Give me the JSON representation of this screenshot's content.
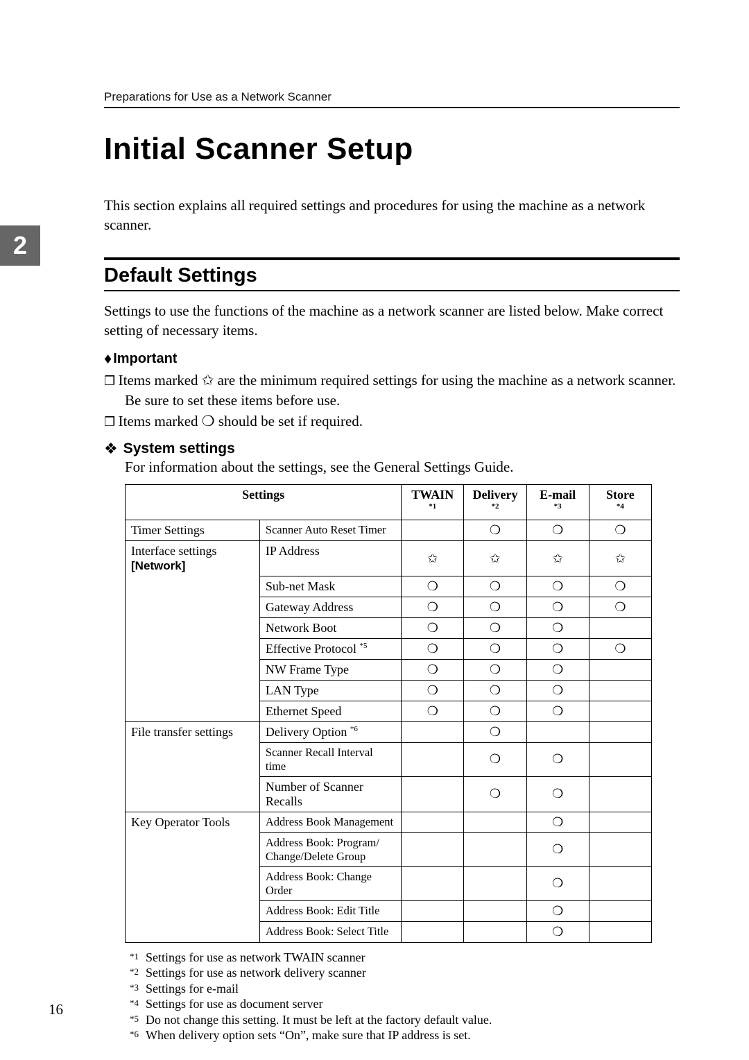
{
  "page_number": "16",
  "chapter_tab": "2",
  "running_head": "Preparations for Use as a Network Scanner",
  "title": "Initial Scanner Setup",
  "intro": "This section explains all required settings and procedures for using the machine as a network scanner.",
  "section_heading": "Default Settings",
  "section_body": "Settings to use the functions of the machine as a network scanner are listed below. Make correct setting of necessary items.",
  "important_label": "Important",
  "important_items": [
    "Items marked ✩ are the minimum required settings for using the machine as a network scanner. Be sure to set these items before use.",
    "Items marked ❍ should be set if required."
  ],
  "system_settings_heading": "System settings",
  "system_settings_sub": "For information about the settings, see the General Settings Guide.",
  "table": {
    "header": {
      "settings": "Settings",
      "cols": [
        {
          "label": "TWAIN",
          "note": "*1"
        },
        {
          "label": "Delivery",
          "note": "*2"
        },
        {
          "label": "E-mail",
          "note": "*3"
        },
        {
          "label": "Store",
          "note": "*4"
        }
      ]
    },
    "groups": [
      {
        "category": "Timer Settings",
        "rows": [
          {
            "setting": "Scanner Auto Reset Timer",
            "small": true,
            "marks": [
              "",
              "❍",
              "❍",
              "❍"
            ]
          }
        ]
      },
      {
        "category": "Interface settings",
        "sub": "[Network]",
        "rows": [
          {
            "setting": "IP Address",
            "marks": [
              "✩",
              "✩",
              "✩",
              "✩"
            ]
          },
          {
            "setting": "Sub-net Mask",
            "marks": [
              "❍",
              "❍",
              "❍",
              "❍"
            ]
          },
          {
            "setting": "Gateway Address",
            "marks": [
              "❍",
              "❍",
              "❍",
              "❍"
            ]
          },
          {
            "setting": "Network Boot",
            "marks": [
              "❍",
              "❍",
              "❍",
              ""
            ]
          },
          {
            "setting": "Effective Protocol",
            "sup": "*5",
            "marks": [
              "❍",
              "❍",
              "❍",
              "❍"
            ]
          },
          {
            "setting": "NW Frame Type",
            "marks": [
              "❍",
              "❍",
              "❍",
              ""
            ]
          },
          {
            "setting": "LAN Type",
            "marks": [
              "❍",
              "❍",
              "❍",
              ""
            ]
          },
          {
            "setting": "Ethernet Speed",
            "marks": [
              "❍",
              "❍",
              "❍",
              ""
            ]
          }
        ]
      },
      {
        "category": "File transfer settings",
        "rows": [
          {
            "setting": "Delivery Option",
            "sup": "*6",
            "marks": [
              "",
              "❍",
              "",
              ""
            ]
          },
          {
            "setting": "Scanner Recall Interval time",
            "small": true,
            "marks": [
              "",
              "❍",
              "❍",
              ""
            ]
          },
          {
            "setting": "Number of Scanner Recalls",
            "marks": [
              "",
              "❍",
              "❍",
              ""
            ]
          }
        ]
      },
      {
        "category": "Key Operator Tools",
        "rows": [
          {
            "setting": "Address Book Management",
            "small": true,
            "marks": [
              "",
              "",
              "❍",
              ""
            ]
          },
          {
            "setting": "Address Book: Program/ Change/Delete Group",
            "small": true,
            "marks": [
              "",
              "",
              "❍",
              ""
            ]
          },
          {
            "setting": "Address Book: Change Order",
            "small": true,
            "marks": [
              "",
              "",
              "❍",
              ""
            ]
          },
          {
            "setting": "Address Book: Edit Title",
            "small": true,
            "marks": [
              "",
              "",
              "❍",
              ""
            ]
          },
          {
            "setting": "Address Book: Select Title",
            "small": true,
            "marks": [
              "",
              "",
              "❍",
              ""
            ]
          }
        ]
      }
    ]
  },
  "footnotes": [
    {
      "num": "*1",
      "text": "Settings for use as network TWAIN scanner"
    },
    {
      "num": "*2",
      "text": "Settings for use as network delivery scanner"
    },
    {
      "num": "*3",
      "text": "Settings for e-mail"
    },
    {
      "num": "*4",
      "text": "Settings for use as document server"
    },
    {
      "num": "*5",
      "text": "Do not change this setting. It must be left at the factory default value."
    },
    {
      "num": "*6",
      "text": "When delivery option sets “On”, make sure that IP address is set."
    }
  ]
}
